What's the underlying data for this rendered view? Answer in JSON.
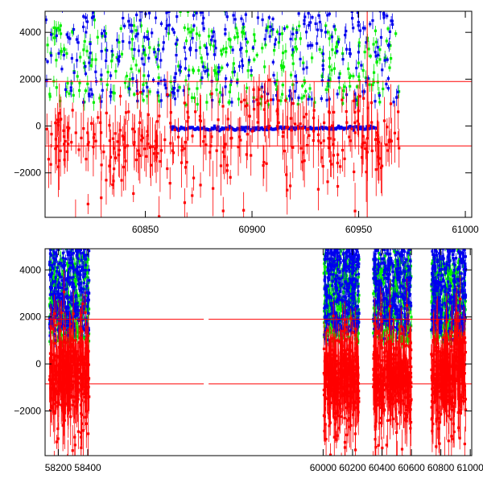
{
  "chart_data": [
    {
      "type": "scatter",
      "panel": "top",
      "title": "",
      "xlabel": "",
      "ylabel": "",
      "xlim": [
        60803,
        61003
      ],
      "ylim": [
        -3900,
        4900
      ],
      "x_ticks": [
        60850,
        60900,
        60950,
        61000
      ],
      "y_ticks": [
        -2000,
        0,
        2000,
        4000
      ],
      "x_tick_labels": [
        "60850",
        "60900",
        "60950",
        "61000"
      ],
      "y_tick_labels": [
        "−2000",
        "0",
        "2000",
        "4000"
      ],
      "reference_lines": [
        1900,
        -850
      ],
      "vertical_lines": [
        60954
      ],
      "data_range_x": [
        60803,
        60969
      ],
      "grid": false,
      "series": [
        {
          "color": "#00ee00",
          "level": 2600,
          "spread": 1700
        },
        {
          "color": "#0000ee",
          "level": 3000,
          "spread": 2000
        },
        {
          "color": "#ff0000",
          "level": -550,
          "spread": 700
        }
      ],
      "features": [
        {
          "series_color": "#0000ee",
          "kind": "flat-run",
          "x": [
            60862,
            60958
          ],
          "y": -100
        },
        {
          "series_color": "#ff0000",
          "kind": "bump",
          "x": [
            60893,
            60922
          ],
          "y": 1300
        }
      ]
    },
    {
      "type": "scatter",
      "panel": "bottom",
      "title": "",
      "xlabel": "",
      "ylabel": "",
      "xlim": [
        58110,
        61010
      ],
      "ylim": [
        -3900,
        4900
      ],
      "x_ticks": [
        58200,
        58400,
        60000,
        60200,
        60400,
        60600,
        60800,
        61000
      ],
      "x_tick_labels": [
        "58200",
        "58400",
        "60000",
        "60200",
        "60400",
        "60600",
        "60800",
        "61000"
      ],
      "y_ticks": [
        -2000,
        0,
        2000,
        4000
      ],
      "y_tick_labels": [
        "−2000",
        "0",
        "2000",
        "4000"
      ],
      "axis_break": {
        "x": [
          58430,
          59980
        ]
      },
      "reference_lines": [
        1900,
        -850
      ],
      "grid": false,
      "segments": [
        [
          58140,
          58410
        ],
        [
          60005,
          60245
        ],
        [
          60340,
          60600
        ],
        [
          60735,
          60970
        ]
      ],
      "series": [
        {
          "color": "#00ee00",
          "level": 2700,
          "spread": 1800
        },
        {
          "color": "#0000ee",
          "level": 3300,
          "spread": 1900
        },
        {
          "color": "#ff0000",
          "level": -500,
          "spread": 800
        }
      ],
      "features": [
        {
          "series_color": "#ff0000",
          "kind": "bump",
          "x": [
            60893,
            60922
          ],
          "y": 1300
        }
      ]
    }
  ]
}
